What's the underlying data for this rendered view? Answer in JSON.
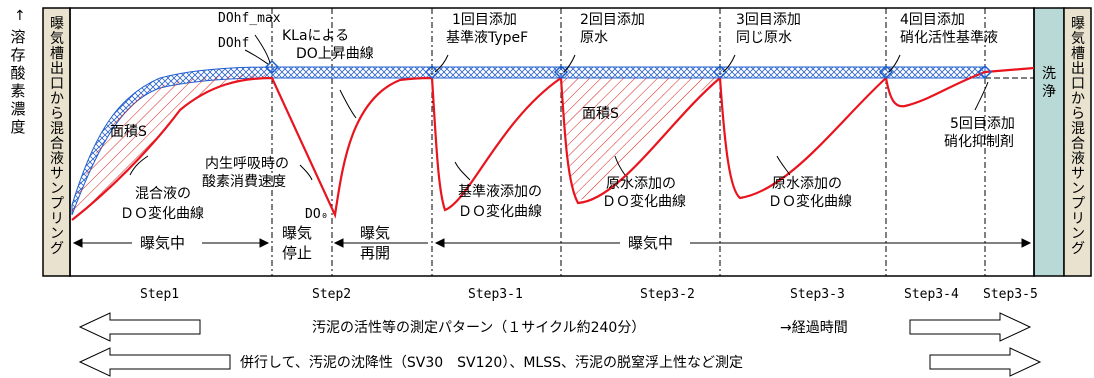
{
  "y_axis_label": "←溶存酸素濃度",
  "side_left_label": "曝気槽出口から混合液サンプリング",
  "side_right_label": "曝気槽出口から混合液サンプリング",
  "wash_label": "洗浄",
  "annotations": {
    "dohf_max": "DOhf_max",
    "dohf": "DOhf",
    "kla1": "KLaによる",
    "kla2": "DO上昇曲線",
    "add1_line1": "1回目添加",
    "add1_line2": "基準液TypeF",
    "add2_line1": "2回目添加",
    "add2_line2": "原水",
    "add3_line1": "3回目添加",
    "add3_line2": "同じ原水",
    "add4_line1": "4回目添加",
    "add4_line2": "硝化活性基準液",
    "add5_line1": "5回目添加",
    "add5_line2": "硝化抑制剤",
    "area_s1": "面積S",
    "area_s2": "面積S",
    "endo1": "内生呼吸時の",
    "endo2": "酸素消費速度",
    "mix1": "混合液の",
    "mix2": "ＤＯ変化曲線",
    "std1": "基準液添加の",
    "std2": "ＤＯ変化曲線",
    "raw1": "原水添加の",
    "raw2": "ＤＯ変化曲線",
    "raw3": "原水添加の",
    "raw4": "ＤＯ変化曲線",
    "do0": "DO₀"
  },
  "phases": {
    "aeration1": "曝気中",
    "stop1": "曝気",
    "stop2": "停止",
    "resume1": "曝気",
    "resume2": "再開",
    "aeration2": "曝気中"
  },
  "steps": [
    "Step1",
    "Step2",
    "Step3-1",
    "Step3-2",
    "Step3-3",
    "Step3-4",
    "Step3-5"
  ],
  "footer": {
    "pattern": "汚泥の活性等の測定パターン（１サイクル約240分）",
    "elapsed": "→経過時間",
    "parallel": "併行して、汚泥の沈降性（SV30　SV120）、MLSS、汚泥の脱窒浮上性など測定"
  },
  "colors": {
    "curve": "#e8141e",
    "band": "#1e5fcf",
    "hatch": "#d9201c",
    "wash_bg": "#b8d9d6",
    "side_bg": "#e9e2cf"
  }
}
